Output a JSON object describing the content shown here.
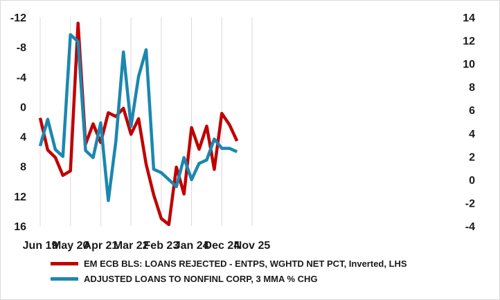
{
  "chart_data": {
    "type": "line",
    "title": "",
    "x_tick_labels": [
      "Jun 19",
      "May 20",
      "Apr 21",
      "Mar 22",
      "Feb 23",
      "Jan 24",
      "Dec 24",
      "Nov 25"
    ],
    "left_axis": {
      "ylim": [
        -12,
        16
      ],
      "inverted": true,
      "ticks": [
        -12,
        -8,
        -4,
        0,
        4,
        8,
        12,
        16
      ],
      "tick_labels": [
        "-12",
        "-8",
        "-4",
        "0",
        "4",
        "8",
        "12",
        "16"
      ]
    },
    "right_axis": {
      "ylim": [
        -4,
        14
      ],
      "ticks": [
        -4,
        -2,
        0,
        2,
        4,
        6,
        8,
        10,
        12,
        14
      ],
      "tick_labels": [
        "-4",
        "-2",
        "0",
        "2",
        "4",
        "6",
        "8",
        "10",
        "12",
        "14"
      ]
    },
    "grid": true,
    "legend_position": "bottom",
    "series": [
      {
        "name": "EM ECB BLS: LOANS REJECTED - ENTPS, WGHTD NET PCT, Inverted, LHS",
        "axis": "left",
        "color": "#c00000",
        "x": [
          0,
          1,
          2,
          3,
          4,
          5,
          6,
          7,
          8,
          9,
          10,
          11,
          12,
          13,
          14,
          15,
          16,
          17,
          18,
          19,
          20,
          21,
          22,
          23,
          24,
          25,
          26
        ],
        "values": [
          1.5,
          5.8,
          6.8,
          9.2,
          8.6,
          -11.2,
          5,
          2.3,
          4.8,
          0.8,
          1.3,
          0.2,
          3.7,
          1.6,
          7.7,
          11.8,
          15,
          15.8,
          8.1,
          11.7,
          2.8,
          5.7,
          2.6,
          8.4,
          0.9,
          2.4,
          4.6
        ]
      },
      {
        "name": "ADJUSTED LOANS TO  NONFINL CORP, 3 MMA % CHG",
        "axis": "right",
        "color": "#1b87b0",
        "x": [
          0,
          1,
          2,
          3,
          4,
          5,
          6,
          7,
          8,
          9,
          10,
          11,
          12,
          13,
          14,
          15,
          16,
          17,
          18,
          19,
          20,
          21,
          22,
          23,
          24,
          25,
          26
        ],
        "values": [
          2.9,
          5.2,
          2.6,
          2,
          12.5,
          11.9,
          2.5,
          1.9,
          4.9,
          -1.8,
          3.3,
          11,
          4.6,
          8.9,
          11.2,
          0.9,
          0.6,
          0,
          -0.6,
          1.9,
          0,
          1.4,
          1.7,
          3.5,
          2.7,
          2.7,
          2.4
        ]
      }
    ],
    "x_tick_positions": [
      0,
      4,
      8,
      12,
      16,
      20,
      24,
      28
    ]
  },
  "legend": {
    "items": [
      {
        "label": "EM ECB BLS: LOANS REJECTED - ENTPS, WGHTD NET PCT, Inverted, LHS",
        "color": "#c00000"
      },
      {
        "label": "ADJUSTED LOANS TO  NONFINL CORP, 3 MMA % CHG",
        "color": "#1b87b0"
      }
    ]
  }
}
